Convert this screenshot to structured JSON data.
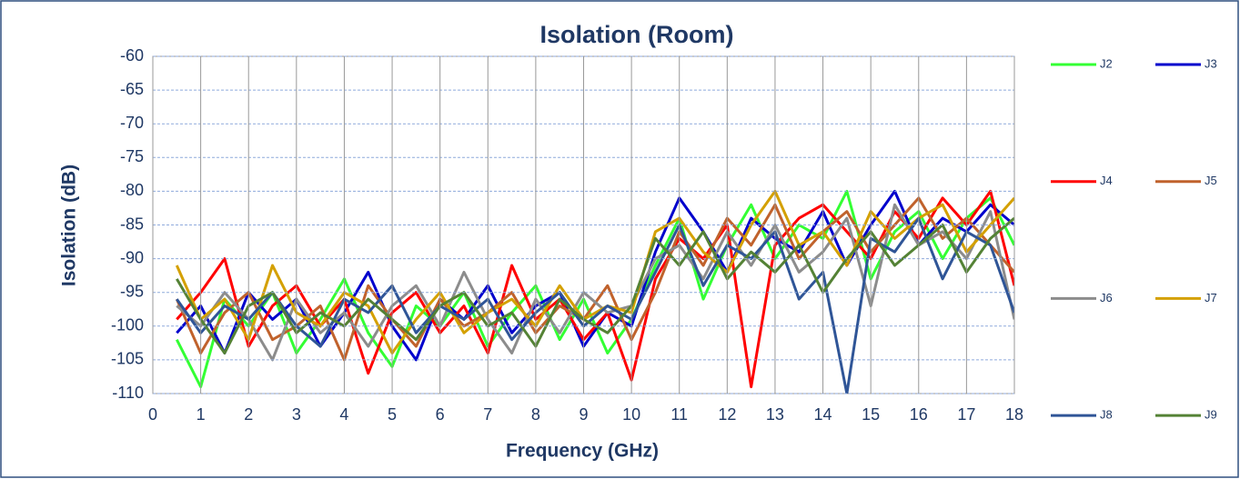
{
  "chart_data": {
    "type": "line",
    "title": "Isolation (Room)",
    "x_label": "Frequency (GHz)",
    "y_label": "Isolation (dB)",
    "x": [
      0.5,
      1,
      1.5,
      2,
      2.5,
      3,
      3.5,
      4,
      4.5,
      5,
      5.5,
      6,
      6.5,
      7,
      7.5,
      8,
      8.5,
      9,
      9.5,
      10,
      10.5,
      11,
      11.5,
      12,
      12.5,
      13,
      13.5,
      14,
      14.5,
      15,
      15.5,
      16,
      16.5,
      17,
      17.5,
      18
    ],
    "series": [
      {
        "name": "J2",
        "color": "#33ff33",
        "values": [
          -102,
          -109,
          -96,
          -100,
          -95,
          -104,
          -99,
          -93,
          -101,
          -106,
          -97,
          -100,
          -95,
          -103,
          -98,
          -94,
          -102,
          -96,
          -104,
          -99,
          -91,
          -84,
          -96,
          -88,
          -82,
          -90,
          -85,
          -87,
          -80,
          -93,
          -86,
          -83,
          -90,
          -84,
          -81,
          -88
        ]
      },
      {
        "name": "J3",
        "color": "#0000cc",
        "values": [
          -101,
          -97,
          -104,
          -95,
          -99,
          -96,
          -103,
          -98,
          -92,
          -100,
          -105,
          -96,
          -99,
          -94,
          -101,
          -97,
          -95,
          -103,
          -98,
          -100,
          -89,
          -81,
          -86,
          -92,
          -84,
          -87,
          -89,
          -83,
          -91,
          -85,
          -80,
          -88,
          -84,
          -86,
          -82,
          -85
        ]
      },
      {
        "name": "J4",
        "color": "#ff0000",
        "values": [
          -99,
          -95,
          -90,
          -103,
          -97,
          -94,
          -100,
          -96,
          -107,
          -98,
          -95,
          -101,
          -97,
          -104,
          -91,
          -99,
          -96,
          -102,
          -98,
          -108,
          -93,
          -87,
          -90,
          -85,
          -109,
          -88,
          -84,
          -82,
          -86,
          -90,
          -83,
          -87,
          -81,
          -85,
          -80,
          -94
        ]
      },
      {
        "name": "J5",
        "color": "#c0622c",
        "values": [
          -96,
          -104,
          -98,
          -95,
          -102,
          -100,
          -97,
          -105,
          -94,
          -99,
          -103,
          -96,
          -100,
          -98,
          -95,
          -101,
          -97,
          -99,
          -94,
          -102,
          -95,
          -86,
          -91,
          -84,
          -88,
          -82,
          -90,
          -86,
          -83,
          -89,
          -85,
          -81,
          -87,
          -84,
          -88,
          -92
        ]
      },
      {
        "name": "J6",
        "color": "#8c8c8c",
        "values": [
          -97,
          -100,
          -95,
          -99,
          -105,
          -96,
          -101,
          -98,
          -103,
          -97,
          -94,
          -100,
          -92,
          -99,
          -104,
          -96,
          -101,
          -95,
          -98,
          -97,
          -90,
          -88,
          -93,
          -86,
          -91,
          -85,
          -92,
          -89,
          -84,
          -97,
          -82,
          -88,
          -86,
          -90,
          -83,
          -99
        ]
      },
      {
        "name": "J7",
        "color": "#d4a000",
        "values": [
          -91,
          -99,
          -96,
          -102,
          -91,
          -98,
          -100,
          -95,
          -97,
          -104,
          -99,
          -95,
          -101,
          -98,
          -96,
          -100,
          -94,
          -99,
          -97,
          -98,
          -86,
          -84,
          -89,
          -92,
          -85,
          -80,
          -88,
          -86,
          -91,
          -83,
          -87,
          -84,
          -82,
          -89,
          -85,
          -81
        ]
      },
      {
        "name": "J8",
        "color": "#2f5597",
        "values": [
          -96,
          -101,
          -97,
          -99,
          -95,
          -100,
          -103,
          -96,
          -98,
          -94,
          -101,
          -97,
          -99,
          -96,
          -102,
          -98,
          -95,
          -100,
          -97,
          -99,
          -92,
          -85,
          -94,
          -88,
          -90,
          -86,
          -96,
          -92,
          -110,
          -87,
          -89,
          -84,
          -93,
          -86,
          -88,
          -98
        ]
      },
      {
        "name": "J9",
        "color": "#548235",
        "values": [
          -93,
          -99,
          -104,
          -97,
          -95,
          -101,
          -98,
          -100,
          -96,
          -99,
          -102,
          -97,
          -95,
          -100,
          -98,
          -103,
          -96,
          -99,
          -101,
          -97,
          -87,
          -91,
          -86,
          -93,
          -89,
          -92,
          -88,
          -95,
          -90,
          -86,
          -91,
          -88,
          -85,
          -92,
          -87,
          -84
        ]
      }
    ],
    "xlim": [
      0,
      18
    ],
    "xticks": [
      0,
      1,
      2,
      3,
      4,
      5,
      6,
      7,
      8,
      9,
      10,
      11,
      12,
      13,
      14,
      15,
      16,
      17,
      18
    ],
    "ylim": [
      -110,
      -60
    ],
    "yticks": [
      -110,
      -105,
      -100,
      -95,
      -90,
      -85,
      -80,
      -75,
      -70,
      -65,
      -60
    ],
    "grid": true,
    "legend": "right"
  }
}
